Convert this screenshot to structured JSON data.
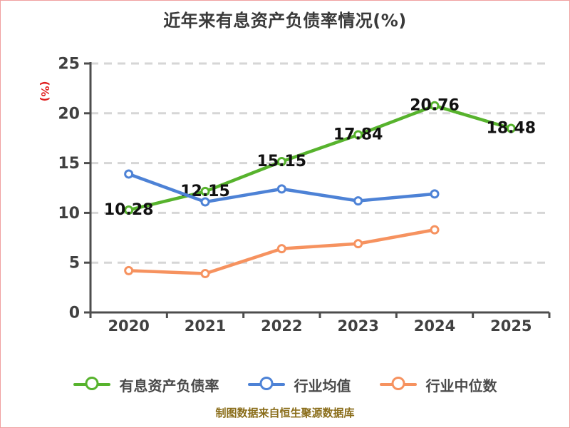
{
  "title": "近年来有息资产负债率情况(%)",
  "footer": "制图数据来自恒生聚源数据库",
  "colors": {
    "series_green": "#57b32d",
    "series_blue": "#4d82d6",
    "series_orange": "#f6925f",
    "axis_line": "#4d4d4d",
    "grid_line": "#d6d6d6",
    "tick_text": "#404040",
    "title_text": "#3a3a3a",
    "value_label_text": "#111111",
    "axis_name_text": "#e01f1f",
    "footer_text": "#8a6d1a",
    "page_border": "#f0a0a0"
  },
  "chart_data": {
    "type": "line",
    "title": "近年来有息资产负债率情况(%)",
    "xlabel": "",
    "ylabel": "(%)",
    "ylim": [
      0,
      25
    ],
    "yticks": [
      0,
      5,
      10,
      15,
      20,
      25
    ],
    "grid": "dashed horizontal gridlines",
    "legend_position": "bottom",
    "categories": [
      "2020",
      "2021",
      "2022",
      "2023",
      "2024",
      "2025"
    ],
    "series": [
      {
        "name": "有息资产负债率",
        "color": "#57b32d",
        "values": [
          10.28,
          12.15,
          15.15,
          17.84,
          20.76,
          18.48
        ],
        "labels": [
          "10.28",
          "12.15",
          "15.15",
          "17.84",
          "20.76",
          "18.48"
        ],
        "show_labels": true
      },
      {
        "name": "行业均值",
        "color": "#4d82d6",
        "values": [
          13.9,
          11.1,
          12.4,
          11.2,
          11.9,
          null
        ],
        "labels": [],
        "show_labels": false
      },
      {
        "name": "行业中位数",
        "color": "#f6925f",
        "values": [
          4.2,
          3.9,
          6.4,
          6.9,
          8.3,
          null
        ],
        "labels": [],
        "show_labels": false
      }
    ]
  },
  "legend": {
    "items": [
      {
        "label": "有息资产负债率",
        "color": "#57b32d"
      },
      {
        "label": "行业均值",
        "color": "#4d82d6"
      },
      {
        "label": "行业中位数",
        "color": "#f6925f"
      }
    ]
  }
}
